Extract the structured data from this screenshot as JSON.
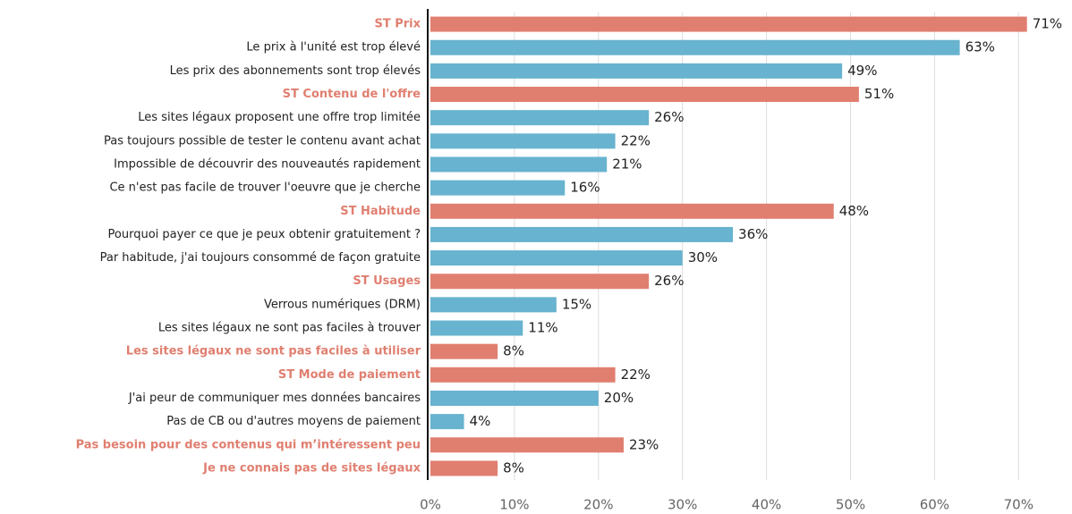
{
  "chart_data": {
    "type": "hbar",
    "categories": [
      "ST Prix",
      "Le prix à l'unité est trop élevé",
      "Les prix des abonnements sont trop élevés",
      "ST Contenu de l'offre",
      "Les sites légaux proposent une offre trop limitée",
      "Pas toujours possible de tester le contenu avant achat",
      "Impossible de découvrir des nouveautés rapidement",
      "Ce n'est pas facile de trouver l'oeuvre que je cherche",
      "ST Habitude",
      "Pourquoi payer ce que je peux obtenir gratuitement ?",
      "Par habitude, j'ai toujours consommé de façon gratuite",
      "ST Usages",
      "Verrous numériques (DRM)",
      "Les sites légaux ne sont pas faciles à trouver",
      "Les sites légaux ne sont pas faciles à utiliser",
      "ST Mode de paiement",
      "J'ai peur de communiquer mes données bancaires",
      "Pas de CB ou d'autres moyens de paiement",
      "Pas besoin pour des contenus qui m’intéressent peu",
      "Je ne connais pas de sites légaux"
    ],
    "values": [
      71,
      63,
      49,
      51,
      26,
      22,
      21,
      16,
      48,
      36,
      30,
      26,
      15,
      11,
      8,
      22,
      20,
      4,
      23,
      8
    ],
    "value_labels": [
      "71%",
      "63%",
      "49%",
      "51%",
      "26%",
      "22%",
      "21%",
      "16%",
      "48%",
      "36%",
      "30%",
      "26%",
      "15%",
      "11%",
      "8%",
      "22%",
      "20%",
      "4%",
      "23%",
      "8%"
    ],
    "color": "#68b3cf",
    "highlight_color": "#e07f70",
    "highlight": [
      0,
      3,
      8,
      11,
      14,
      15,
      18,
      19
    ],
    "xlim": [
      0,
      75
    ],
    "xticks": [
      {
        "value": 0,
        "label": "0%"
      },
      {
        "value": 10,
        "label": "10%"
      },
      {
        "value": 20,
        "label": "20%"
      },
      {
        "value": 30,
        "label": "30%"
      },
      {
        "value": 40,
        "label": "40%"
      },
      {
        "value": 50,
        "label": "50%"
      },
      {
        "value": 60,
        "label": "60%"
      },
      {
        "value": 70,
        "label": "70%"
      }
    ],
    "grid": true
  }
}
